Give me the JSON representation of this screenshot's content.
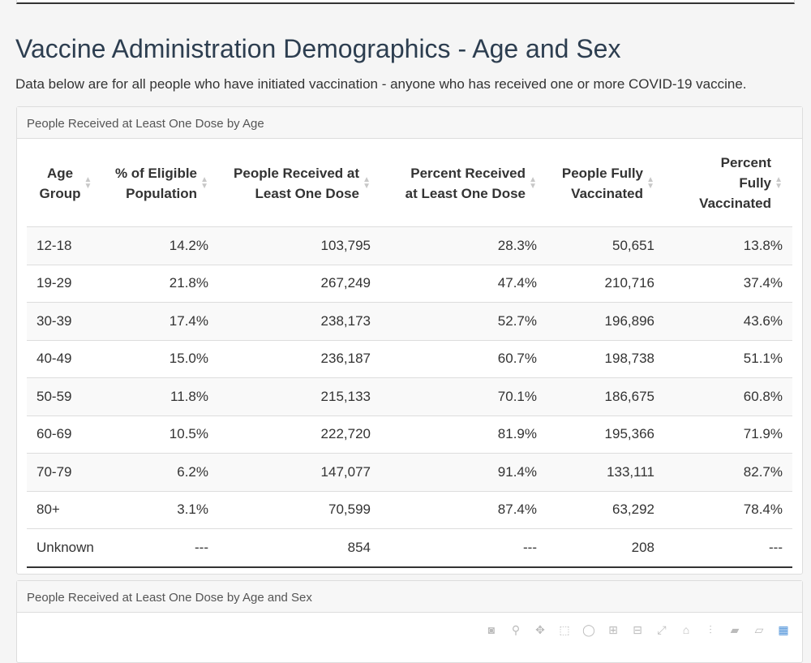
{
  "header": {
    "title": "Vaccine Administration Demographics - Age and Sex",
    "subtitle": "Data below are for all people who have initiated vaccination - anyone who has received one or more COVID-19 vaccine."
  },
  "panel1": {
    "title": "People Received at Least One Dose by Age",
    "columns": [
      "Age Group",
      "% of Eligible Population",
      "People Received at Least One Dose",
      "Percent Received at Least One Dose",
      "People Fully Vaccinated",
      "Percent Fully Vaccinated"
    ],
    "rows": [
      [
        "12-18",
        "14.2%",
        "103,795",
        "28.3%",
        "50,651",
        "13.8%"
      ],
      [
        "19-29",
        "21.8%",
        "267,249",
        "47.4%",
        "210,716",
        "37.4%"
      ],
      [
        "30-39",
        "17.4%",
        "238,173",
        "52.7%",
        "196,896",
        "43.6%"
      ],
      [
        "40-49",
        "15.0%",
        "236,187",
        "60.7%",
        "198,738",
        "51.1%"
      ],
      [
        "50-59",
        "11.8%",
        "215,133",
        "70.1%",
        "186,675",
        "60.8%"
      ],
      [
        "60-69",
        "10.5%",
        "222,720",
        "81.9%",
        "195,366",
        "71.9%"
      ],
      [
        "70-79",
        "6.2%",
        "147,077",
        "91.4%",
        "133,111",
        "82.7%"
      ],
      [
        "80+",
        "3.1%",
        "70,599",
        "87.4%",
        "63,292",
        "78.4%"
      ],
      [
        "Unknown",
        "---",
        "854",
        "---",
        "208",
        "---"
      ]
    ]
  },
  "panel2": {
    "title": "People Received at Least One Dose by Age and Sex",
    "toolbar_icons": [
      "camera-icon",
      "zoom-icon",
      "pan-icon",
      "box-select-icon",
      "lasso-icon",
      "zoom-in-icon",
      "zoom-out-icon",
      "autoscale-icon",
      "reset-axes-icon",
      "spike-lines-icon",
      "hover-closest-icon",
      "hover-compare-icon",
      "plotly-logo-icon"
    ]
  }
}
